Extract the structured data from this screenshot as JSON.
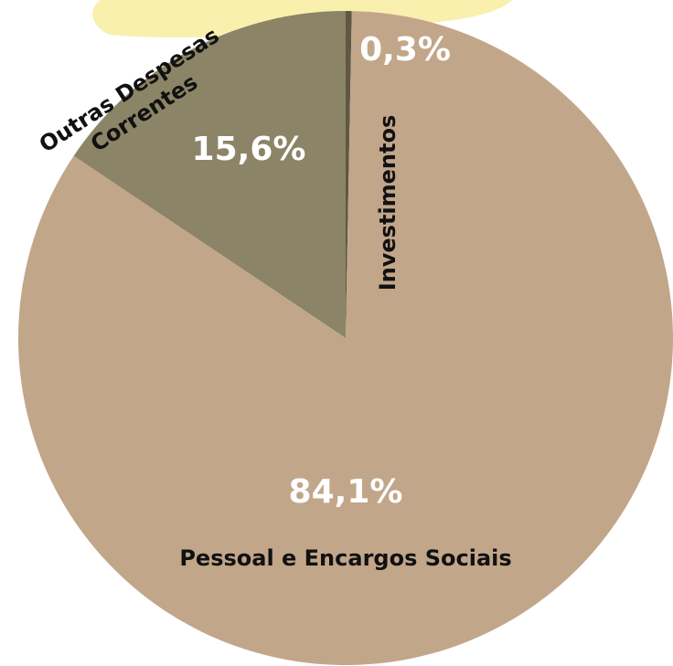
{
  "chart_data": {
    "type": "pie",
    "categories": [
      "Investimentos",
      "Pessoal e Encargos Sociais",
      "Outras Despesas Correntes"
    ],
    "values": [
      0.3,
      84.1,
      15.6
    ],
    "value_labels": [
      "0,3%",
      "84,1%",
      "15,6%"
    ],
    "colors": [
      "#5e5844",
      "#c2a68a",
      "#8c8466"
    ]
  }
}
